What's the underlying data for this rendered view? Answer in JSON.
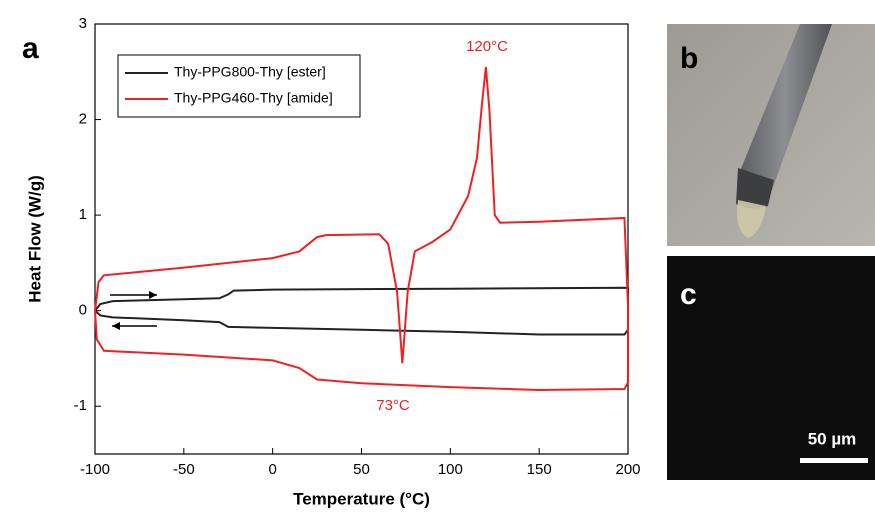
{
  "chart_data": {
    "type": "line",
    "xlabel": "Temperature (°C)",
    "ylabel": "Heat Flow (W/g)",
    "xlim": [
      -100,
      200
    ],
    "xticks": [
      -100,
      -50,
      0,
      50,
      100,
      150,
      200
    ],
    "ylim": [
      -1.5,
      3
    ],
    "yticks": [
      -1,
      0,
      1,
      2,
      3
    ],
    "legend": "upper left",
    "annotations": [
      "120°C",
      "73°C"
    ],
    "series": [
      {
        "name": "Thy-PPG800-Thy [ester]",
        "color": "#222222",
        "x": [
          -100,
          -97,
          -90,
          -50,
          -30,
          -25,
          -22,
          0,
          100,
          200,
          200,
          198,
          150,
          100,
          50,
          0,
          -25,
          -30,
          -50,
          -90,
          -97,
          -100
        ],
        "values": [
          0,
          0.07,
          0.1,
          0.12,
          0.13,
          0.17,
          0.21,
          0.22,
          0.23,
          0.24,
          -0.2,
          -0.25,
          -0.25,
          -0.22,
          -0.2,
          -0.18,
          -0.17,
          -0.12,
          -0.1,
          -0.07,
          -0.05,
          0
        ]
      },
      {
        "name": "Thy-PPG460-Thy [amide]",
        "color": "#ee2222",
        "x": [
          -100,
          -98,
          -95,
          -50,
          0,
          15,
          25,
          30,
          60,
          65,
          70,
          73,
          76,
          80,
          90,
          100,
          110,
          115,
          118,
          120,
          122,
          125,
          128,
          150,
          198,
          200,
          200,
          198,
          150,
          100,
          50,
          25,
          15,
          0,
          -50,
          -95,
          -99,
          -100
        ],
        "values": [
          0,
          0.3,
          0.37,
          0.45,
          0.55,
          0.62,
          0.77,
          0.79,
          0.8,
          0.7,
          0.2,
          -0.55,
          0.2,
          0.62,
          0.72,
          0.85,
          1.2,
          1.6,
          2.2,
          2.55,
          2.1,
          1.0,
          0.92,
          0.93,
          0.97,
          0.05,
          -0.75,
          -0.82,
          -0.83,
          -0.8,
          -0.76,
          -0.72,
          -0.6,
          -0.52,
          -0.46,
          -0.42,
          -0.3,
          0
        ]
      }
    ]
  },
  "panels": [
    "a",
    "b",
    "c"
  ],
  "scale_bar": "50 µm"
}
